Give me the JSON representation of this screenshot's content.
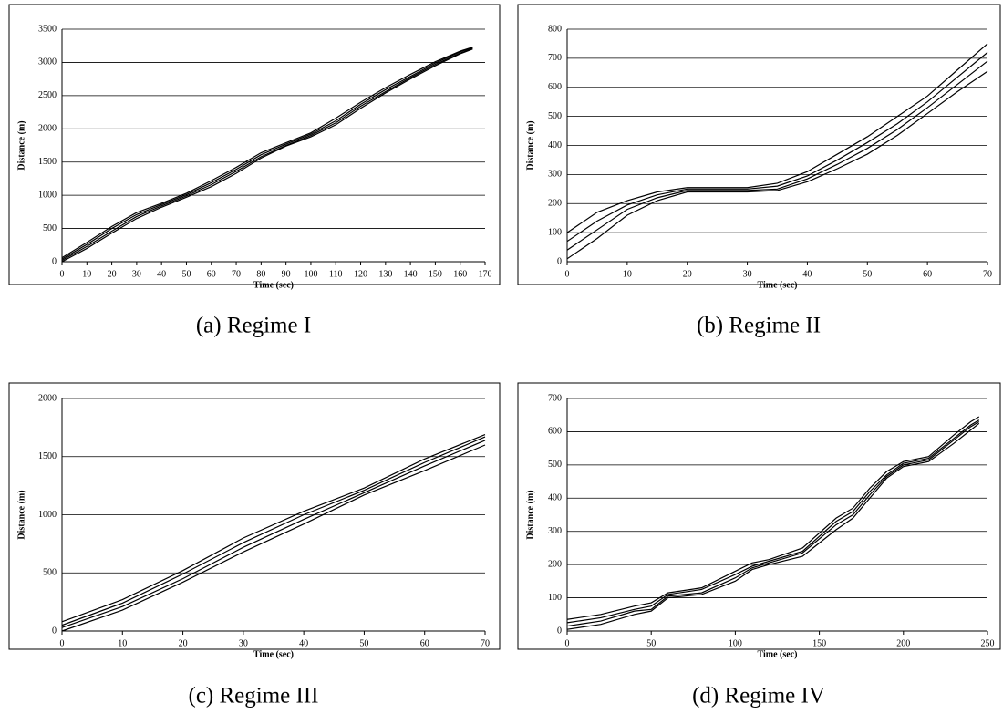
{
  "chart_data": [
    {
      "type": "line",
      "caption": "(a) Regime I",
      "xlabel": "Time (sec)",
      "ylabel": "Distance (m)",
      "x": [
        0,
        10,
        20,
        30,
        40,
        50,
        60,
        70,
        80,
        90,
        100,
        110,
        120,
        130,
        140,
        150,
        160,
        165
      ],
      "series": [
        {
          "color": "#000000",
          "values": [
            60,
            290,
            530,
            740,
            880,
            1030,
            1220,
            1420,
            1640,
            1790,
            1940,
            2160,
            2400,
            2620,
            2820,
            3010,
            3170,
            3230
          ]
        },
        {
          "color": "#000000",
          "values": [
            40,
            260,
            500,
            710,
            860,
            1010,
            1190,
            1390,
            1610,
            1770,
            1920,
            2120,
            2370,
            2590,
            2790,
            2990,
            3160,
            3220
          ]
        },
        {
          "color": "#000000",
          "values": [
            20,
            230,
            460,
            680,
            840,
            990,
            1160,
            1360,
            1580,
            1750,
            1900,
            2090,
            2340,
            2560,
            2770,
            2970,
            3140,
            3210
          ]
        },
        {
          "color": "#000000",
          "values": [
            0,
            200,
            430,
            650,
            820,
            970,
            1130,
            1330,
            1560,
            1740,
            1880,
            2060,
            2310,
            2540,
            2750,
            2950,
            3130,
            3200
          ]
        }
      ],
      "xlim": [
        0,
        170
      ],
      "xticks": [
        0,
        10,
        20,
        30,
        40,
        50,
        60,
        70,
        80,
        90,
        100,
        110,
        120,
        130,
        140,
        150,
        160,
        170
      ],
      "ylim": [
        0,
        3500
      ],
      "yticks": [
        0,
        500,
        1000,
        1500,
        2000,
        2500,
        3000,
        3500
      ],
      "grid": true
    },
    {
      "type": "line",
      "caption": "(b) Regime II",
      "xlabel": "Time (sec)",
      "ylabel": "Distance (m)",
      "x": [
        0,
        5,
        10,
        15,
        20,
        25,
        30,
        35,
        40,
        45,
        50,
        55,
        60,
        65,
        70
      ],
      "series": [
        {
          "color": "#000000",
          "values": [
            100,
            170,
            210,
            240,
            255,
            255,
            255,
            270,
            310,
            370,
            430,
            500,
            570,
            660,
            750
          ]
        },
        {
          "color": "#000000",
          "values": [
            70,
            140,
            195,
            230,
            250,
            250,
            250,
            260,
            295,
            350,
            410,
            475,
            550,
            635,
            720
          ]
        },
        {
          "color": "#000000",
          "values": [
            40,
            110,
            180,
            220,
            245,
            245,
            245,
            250,
            285,
            335,
            390,
            455,
            530,
            610,
            690
          ]
        },
        {
          "color": "#000000",
          "values": [
            10,
            80,
            160,
            210,
            240,
            240,
            240,
            245,
            275,
            320,
            370,
            435,
            510,
            585,
            655
          ]
        }
      ],
      "xlim": [
        0,
        70
      ],
      "xticks": [
        0,
        10,
        20,
        30,
        40,
        50,
        60,
        70
      ],
      "ylim": [
        0,
        800
      ],
      "yticks": [
        0,
        100,
        200,
        300,
        400,
        500,
        600,
        700,
        800
      ],
      "grid": true
    },
    {
      "type": "line",
      "caption": "(c) Regime III",
      "xlabel": "Time (sec)",
      "ylabel": "Distance (m)",
      "x": [
        0,
        10,
        20,
        30,
        40,
        50,
        60,
        70
      ],
      "series": [
        {
          "color": "#000000",
          "values": [
            80,
            270,
            520,
            800,
            1030,
            1230,
            1480,
            1690
          ]
        },
        {
          "color": "#000000",
          "values": [
            50,
            240,
            490,
            760,
            1000,
            1210,
            1450,
            1670
          ]
        },
        {
          "color": "#000000",
          "values": [
            30,
            210,
            450,
            720,
            960,
            1190,
            1420,
            1640
          ]
        },
        {
          "color": "#000000",
          "values": [
            0,
            180,
            420,
            680,
            920,
            1170,
            1380,
            1600
          ]
        }
      ],
      "xlim": [
        0,
        70
      ],
      "xticks": [
        0,
        10,
        20,
        30,
        40,
        50,
        60,
        70
      ],
      "ylim": [
        0,
        2000
      ],
      "yticks": [
        0,
        500,
        1000,
        1500,
        2000
      ],
      "grid": true
    },
    {
      "type": "line",
      "caption": "(d) Regime IV",
      "xlabel": "Time (sec)",
      "ylabel": "Distance (m)",
      "x": [
        0,
        20,
        40,
        50,
        60,
        80,
        100,
        110,
        120,
        140,
        160,
        170,
        180,
        190,
        200,
        215,
        230,
        240,
        245
      ],
      "series": [
        {
          "color": "#000000",
          "values": [
            35,
            50,
            75,
            85,
            115,
            130,
            180,
            205,
            215,
            250,
            340,
            370,
            430,
            480,
            510,
            525,
            590,
            630,
            645
          ]
        },
        {
          "color": "#000000",
          "values": [
            25,
            40,
            65,
            75,
            110,
            125,
            170,
            195,
            210,
            240,
            330,
            360,
            420,
            470,
            505,
            520,
            580,
            620,
            635
          ]
        },
        {
          "color": "#000000",
          "values": [
            15,
            30,
            60,
            65,
            105,
            115,
            160,
            190,
            205,
            235,
            320,
            350,
            410,
            465,
            500,
            515,
            575,
            615,
            630
          ]
        },
        {
          "color": "#000000",
          "values": [
            5,
            20,
            50,
            60,
            100,
            110,
            150,
            185,
            200,
            225,
            305,
            340,
            400,
            460,
            495,
            510,
            565,
            605,
            625
          ]
        }
      ],
      "xlim": [
        0,
        250
      ],
      "xticks": [
        0,
        50,
        100,
        150,
        200,
        250
      ],
      "ylim": [
        0,
        700
      ],
      "yticks": [
        0,
        100,
        200,
        300,
        400,
        500,
        600,
        700
      ],
      "grid": true
    }
  ]
}
